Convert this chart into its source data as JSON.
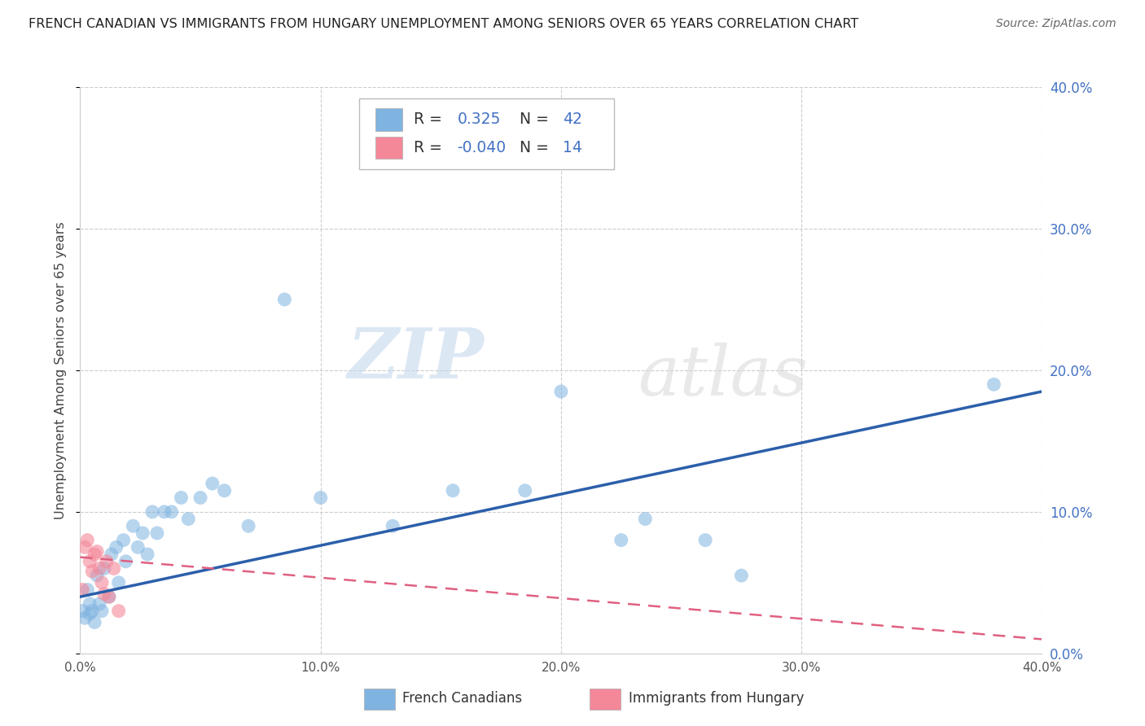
{
  "title": "FRENCH CANADIAN VS IMMIGRANTS FROM HUNGARY UNEMPLOYMENT AMONG SENIORS OVER 65 YEARS CORRELATION CHART",
  "source": "Source: ZipAtlas.com",
  "ylabel": "Unemployment Among Seniors over 65 years",
  "xlim": [
    0.0,
    0.4
  ],
  "ylim": [
    0.0,
    0.4
  ],
  "legend_entries": [
    {
      "color": "#aac4e8",
      "R": "0.325",
      "N": "42"
    },
    {
      "color": "#f4b8c1",
      "R": "-0.040",
      "N": "14"
    }
  ],
  "french_canadian_x": [
    0.001,
    0.002,
    0.003,
    0.004,
    0.004,
    0.005,
    0.006,
    0.007,
    0.008,
    0.009,
    0.01,
    0.012,
    0.013,
    0.015,
    0.016,
    0.018,
    0.019,
    0.022,
    0.024,
    0.026,
    0.028,
    0.03,
    0.032,
    0.035,
    0.038,
    0.042,
    0.045,
    0.05,
    0.055,
    0.06,
    0.07,
    0.085,
    0.1,
    0.13,
    0.155,
    0.185,
    0.2,
    0.225,
    0.235,
    0.26,
    0.275,
    0.38
  ],
  "french_canadian_y": [
    0.03,
    0.025,
    0.045,
    0.028,
    0.035,
    0.03,
    0.022,
    0.055,
    0.035,
    0.03,
    0.06,
    0.04,
    0.07,
    0.075,
    0.05,
    0.08,
    0.065,
    0.09,
    0.075,
    0.085,
    0.07,
    0.1,
    0.085,
    0.1,
    0.1,
    0.11,
    0.095,
    0.11,
    0.12,
    0.115,
    0.09,
    0.25,
    0.11,
    0.09,
    0.115,
    0.115,
    0.185,
    0.08,
    0.095,
    0.08,
    0.055,
    0.19
  ],
  "hungary_x": [
    0.001,
    0.002,
    0.003,
    0.004,
    0.005,
    0.006,
    0.007,
    0.008,
    0.009,
    0.01,
    0.011,
    0.012,
    0.014,
    0.016
  ],
  "hungary_y": [
    0.045,
    0.075,
    0.08,
    0.065,
    0.058,
    0.07,
    0.072,
    0.06,
    0.05,
    0.042,
    0.065,
    0.04,
    0.06,
    0.03
  ],
  "fc_line_x": [
    0.0,
    0.4
  ],
  "fc_line_y": [
    0.04,
    0.185
  ],
  "hun_line_x": [
    0.0,
    0.4
  ],
  "hun_line_y": [
    0.068,
    0.01
  ],
  "watermark_line1": "ZIP",
  "watermark_line2": "atlas",
  "background_color": "#ffffff",
  "grid_color": "#cccccc",
  "fc_scatter_color": "#7fb3e0",
  "fc_scatter_alpha": 0.55,
  "hungary_scatter_color": "#f48899",
  "hungary_scatter_alpha": 0.6,
  "fc_line_color": "#2b5faa",
  "hungary_line_color": "#e06080",
  "right_axis_color": "#4472c4",
  "title_fontsize": 11.5,
  "source_fontsize": 10
}
